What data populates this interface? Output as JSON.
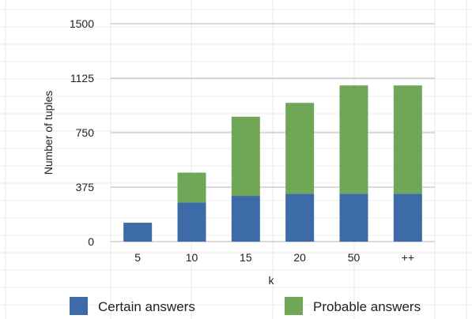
{
  "chart_data": {
    "type": "bar",
    "stacked": true,
    "categories": [
      "5",
      "10",
      "15",
      "20",
      "50",
      "++"
    ],
    "series": [
      {
        "name": "Certain answers",
        "values": [
          130,
          270,
          315,
          330,
          330,
          330
        ],
        "color": "#3d6ba8"
      },
      {
        "name": "Probable answers",
        "values": [
          0,
          205,
          545,
          625,
          745,
          745
        ],
        "color": "#6fa757"
      }
    ],
    "xlabel": "k",
    "ylabel": "Number of tuples",
    "yticks": [
      0,
      375,
      750,
      1125,
      1500
    ],
    "ylim": [
      0,
      1500
    ],
    "grid": true,
    "legend_position": "bottom"
  }
}
